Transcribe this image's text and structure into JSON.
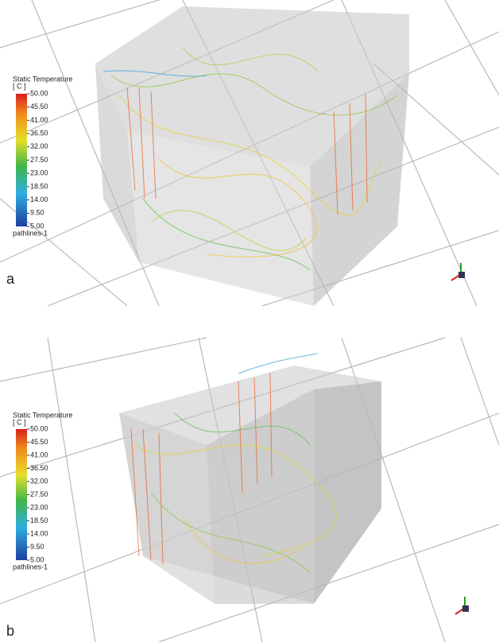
{
  "panels": [
    {
      "label": "a",
      "legend": {
        "title": "Static Temperature",
        "unit": "[ C ]",
        "ticks": [
          "50.00",
          "45.50",
          "41.00",
          "36.50",
          "32.00",
          "27.50",
          "23.00",
          "18.50",
          "14.00",
          "9.50",
          "5.00"
        ],
        "name": "pathlines-1"
      }
    },
    {
      "label": "b",
      "legend": {
        "title": "Static Temperature",
        "unit": "[ C ]",
        "ticks": [
          "50.00",
          "45.50",
          "41.00",
          "36.50",
          "32.00",
          "27.50",
          "23.00",
          "18.50",
          "14.00",
          "9.50",
          "5.00"
        ],
        "name": "pathlines-1"
      }
    }
  ]
}
